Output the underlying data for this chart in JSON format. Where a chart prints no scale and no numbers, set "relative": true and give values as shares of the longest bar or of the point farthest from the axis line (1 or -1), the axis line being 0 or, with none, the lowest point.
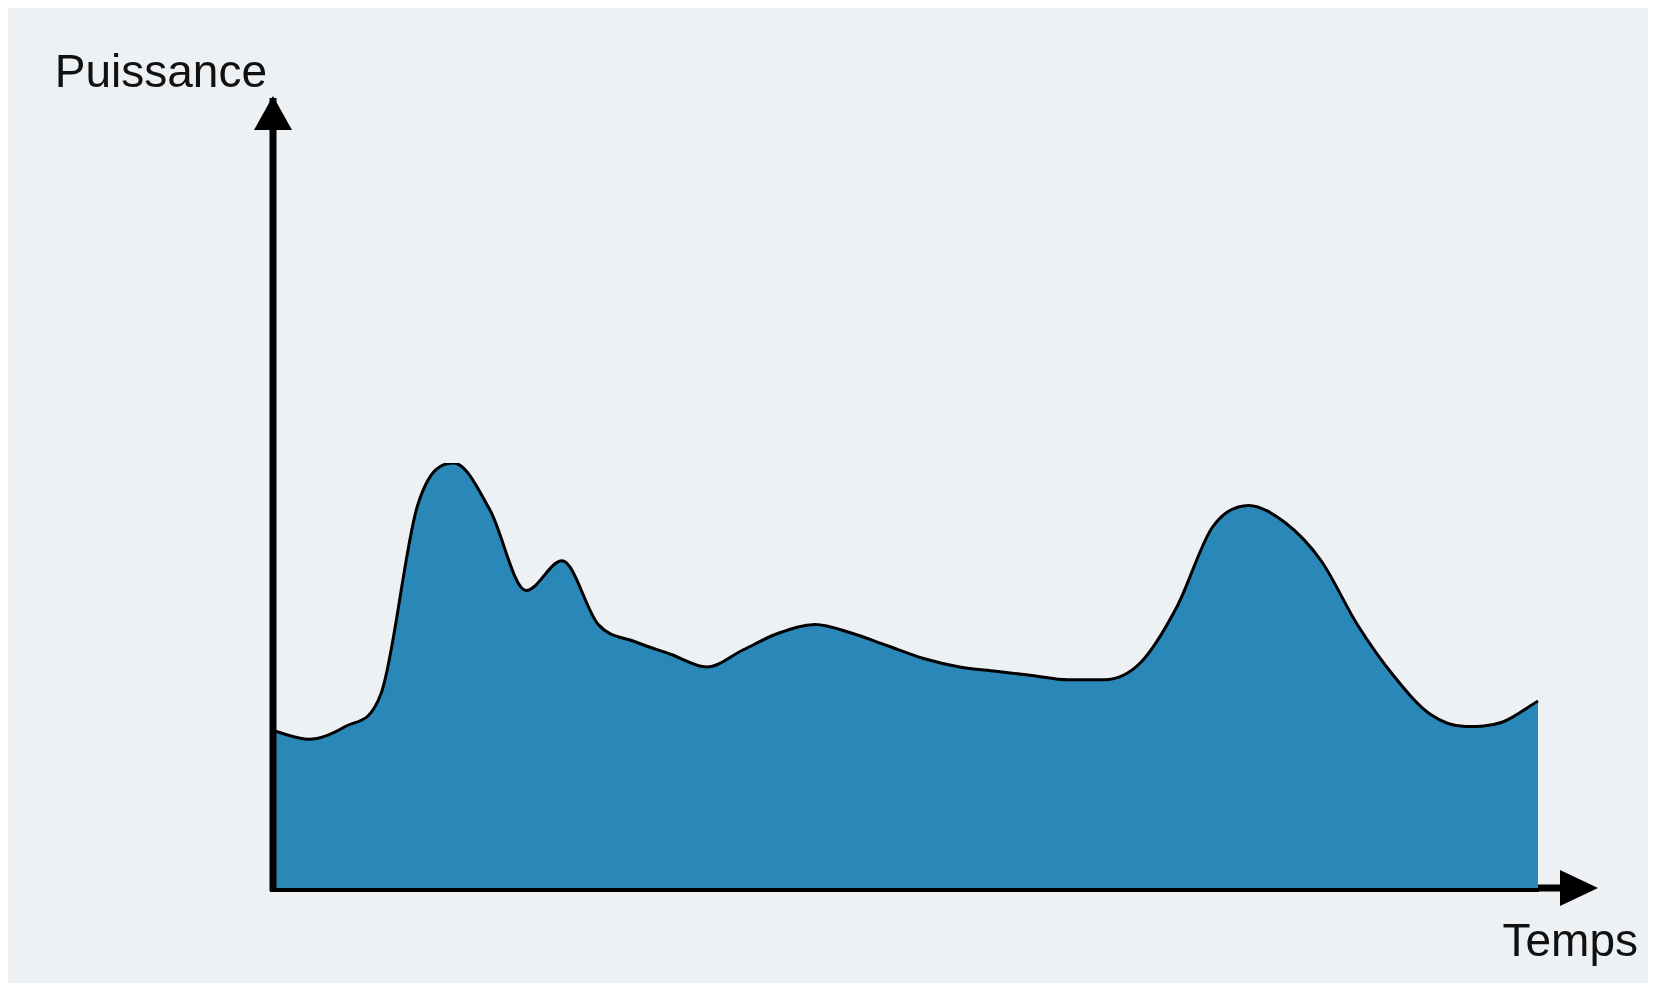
{
  "chart_data": {
    "type": "area",
    "relative": true,
    "xlabel": "Temps",
    "annotations": [
      "Puissance"
    ],
    "grid": false,
    "legend": false,
    "marker": "none",
    "line_style": "solid",
    "categories": [
      null,
      null,
      null,
      null,
      null,
      null,
      null,
      null,
      null,
      null,
      null,
      null,
      null,
      null,
      null,
      null,
      null,
      null,
      null,
      null,
      null,
      null,
      null,
      null,
      null,
      null,
      null,
      null,
      null,
      null,
      null,
      null,
      null,
      null,
      null,
      null
    ],
    "series": [
      {
        "color": "#2a88b8",
        "values": [
          0.37,
          0.35,
          0.38,
          0.46,
          0.9,
          1,
          0.89,
          0.7,
          0.77,
          0.62,
          0.58,
          0.55,
          0.52,
          0.56,
          0.6,
          0.62,
          0.6,
          0.57,
          0.54,
          0.52,
          0.51,
          0.5,
          0.49,
          0.49,
          0.53,
          0.66,
          0.85,
          0.9,
          0.86,
          0.77,
          0.62,
          0.5,
          0.41,
          0.38,
          0.39,
          0.44
        ]
      }
    ]
  }
}
